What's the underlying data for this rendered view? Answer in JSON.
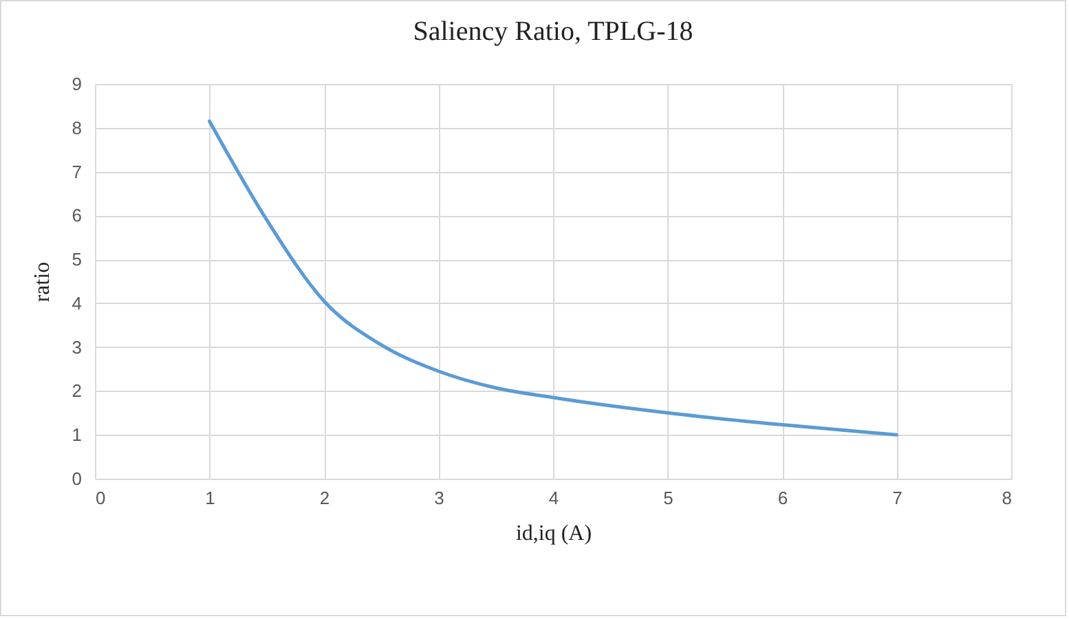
{
  "chart_data": {
    "type": "line",
    "title": "Saliency Ratio, TPLG-18",
    "xlabel": "id,iq (A)",
    "ylabel": "ratio",
    "x": [
      1,
      1.5,
      2,
      2.5,
      3,
      3.5,
      4,
      5,
      6,
      7
    ],
    "series": [
      {
        "color": "#5b9bd5",
        "values": [
          8.15,
          5.9,
          4.05,
          3.05,
          2.45,
          2.07,
          1.85,
          1.5,
          1.23,
          1.0
        ]
      }
    ],
    "xlim": [
      0,
      8
    ],
    "xticks": [
      0,
      1,
      2,
      3,
      4,
      5,
      6,
      7,
      8
    ],
    "ylim": [
      0,
      9
    ],
    "yticks": [
      0,
      1,
      2,
      3,
      4,
      5,
      6,
      7,
      8,
      9
    ],
    "grid": true,
    "marker": "none",
    "line_style": "solid"
  }
}
